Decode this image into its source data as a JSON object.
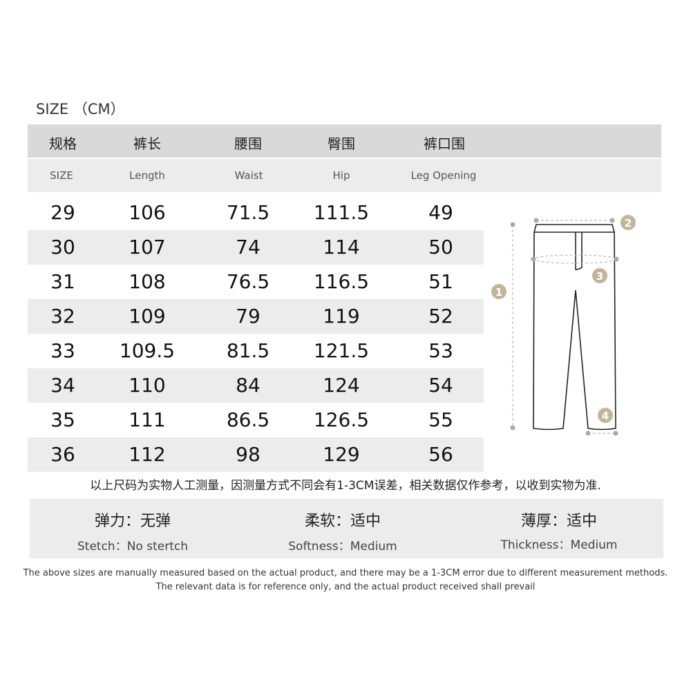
{
  "title": "SIZE （CM）",
  "headers_cn": [
    "规格",
    "裤长",
    "腰围",
    "臀围",
    "裤口围"
  ],
  "headers_en": [
    "SIZE",
    "Length",
    "Waist",
    "Hip",
    "Leg Opening"
  ],
  "rows": [
    [
      "29",
      "106",
      "71.5",
      "111.5",
      "49"
    ],
    [
      "30",
      "107",
      "74",
      "114",
      "50"
    ],
    [
      "31",
      "108",
      "76.5",
      "116.5",
      "51"
    ],
    [
      "32",
      "109",
      "79",
      "119",
      "52"
    ],
    [
      "33",
      "109.5",
      "81.5",
      "121.5",
      "53"
    ],
    [
      "34",
      "110",
      "84",
      "124",
      "54"
    ],
    [
      "35",
      "111",
      "86.5",
      "126.5",
      "55"
    ],
    [
      "36",
      "112",
      "98",
      "129",
      "56"
    ]
  ],
  "diagram_labels": [
    "1",
    "2",
    "3",
    "4"
  ],
  "note_cn": "以上尺码为实物人工测量，因测量方式不同会有1-3CM误差，相关数据仅作参考，以收到实物为准.",
  "properties": [
    {
      "cn": "弹力：无弹",
      "en": "Stetch：No stertch"
    },
    {
      "cn": "柔软：适中",
      "en": "Softness：Medium"
    },
    {
      "cn": "薄厚：适中",
      "en": "Thickness：Medium"
    }
  ],
  "footer": [
    "The above sizes are manually measured based on the actual product, and there may be a 1-3CM error due to different measurement methods.",
    "The relevant data is for reference only, and the actual product received shall prevail"
  ],
  "colors": {
    "header": "#d9d9d9",
    "stripe": "#ececec",
    "badge": "#c2b59b"
  }
}
